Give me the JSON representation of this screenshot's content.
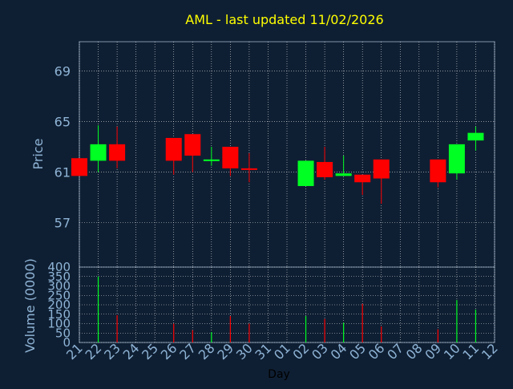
{
  "colors": {
    "background": "#0f1f33",
    "title": "#ffff00",
    "axis_text": "#8fb4d6",
    "frame": "#ffffff",
    "grid": "#ffffff",
    "up": "#00ff22",
    "down": "#ff0000",
    "x_axis_label": "#000000"
  },
  "chart_data": {
    "type": "candlestick",
    "title": "AML - last updated 11/02/2026",
    "xlabel": "Day",
    "x": [
      "21",
      "22",
      "23",
      "24",
      "25",
      "26",
      "27",
      "28",
      "29",
      "30",
      "31",
      "01",
      "02",
      "03",
      "04",
      "05",
      "06",
      "07",
      "08",
      "09",
      "10",
      "11",
      "12"
    ],
    "price_panel": {
      "ylabel": "Price",
      "ylim": [
        53.5,
        71.3
      ],
      "yticks": [
        57,
        61,
        65,
        69
      ],
      "grid": true,
      "candles": [
        {
          "day": "21",
          "open": 62.1,
          "close": 60.7,
          "high": 62.1,
          "low": 60.7
        },
        {
          "day": "22",
          "open": 61.9,
          "close": 63.2,
          "high": 64.7,
          "low": 61.0
        },
        {
          "day": "23",
          "open": 63.2,
          "close": 61.9,
          "high": 64.6,
          "low": 61.3
        },
        {
          "day": "26",
          "open": 63.7,
          "close": 61.9,
          "high": 63.7,
          "low": 60.8
        },
        {
          "day": "27",
          "open": 64.0,
          "close": 62.3,
          "high": 64.0,
          "low": 61.0
        },
        {
          "day": "28",
          "open": 61.9,
          "close": 62.0,
          "high": 63.0,
          "low": 61.5
        },
        {
          "day": "29",
          "open": 63.0,
          "close": 61.3,
          "high": 63.0,
          "low": 60.7
        },
        {
          "day": "30",
          "open": 61.3,
          "close": 61.2,
          "high": 62.5,
          "low": 60.2
        },
        {
          "day": "02",
          "open": 59.9,
          "close": 61.9,
          "high": 61.9,
          "low": 59.9
        },
        {
          "day": "03",
          "open": 61.8,
          "close": 60.6,
          "high": 63.0,
          "low": 60.4
        },
        {
          "day": "04",
          "open": 60.7,
          "close": 60.9,
          "high": 62.3,
          "low": 60.7
        },
        {
          "day": "05",
          "open": 60.8,
          "close": 60.2,
          "high": 60.8,
          "low": 59.2
        },
        {
          "day": "06",
          "open": 62.0,
          "close": 60.5,
          "high": 62.0,
          "low": 58.5
        },
        {
          "day": "09",
          "open": 62.0,
          "close": 60.2,
          "high": 62.0,
          "low": 59.8
        },
        {
          "day": "10",
          "open": 60.9,
          "close": 63.2,
          "high": 63.2,
          "low": 60.4
        },
        {
          "day": "11",
          "open": 63.5,
          "close": 64.1,
          "high": 64.6,
          "low": 62.7
        }
      ]
    },
    "volume_panel": {
      "ylabel": "Volume (0000)",
      "ylim": [
        0,
        400
      ],
      "yticks": [
        0,
        50,
        100,
        150,
        200,
        250,
        300,
        350,
        400
      ],
      "grid": true,
      "bars": [
        {
          "day": "22",
          "value": 350,
          "dir": "up"
        },
        {
          "day": "23",
          "value": 145,
          "dir": "down"
        },
        {
          "day": "26",
          "value": 100,
          "dir": "down"
        },
        {
          "day": "27",
          "value": 65,
          "dir": "down"
        },
        {
          "day": "28",
          "value": 55,
          "dir": "up"
        },
        {
          "day": "29",
          "value": 140,
          "dir": "down"
        },
        {
          "day": "30",
          "value": 100,
          "dir": "down"
        },
        {
          "day": "02",
          "value": 140,
          "dir": "up"
        },
        {
          "day": "03",
          "value": 125,
          "dir": "down"
        },
        {
          "day": "04",
          "value": 105,
          "dir": "up"
        },
        {
          "day": "05",
          "value": 205,
          "dir": "down"
        },
        {
          "day": "06",
          "value": 85,
          "dir": "down"
        },
        {
          "day": "09",
          "value": 70,
          "dir": "down"
        },
        {
          "day": "10",
          "value": 225,
          "dir": "up"
        },
        {
          "day": "11",
          "value": 175,
          "dir": "up"
        }
      ]
    }
  }
}
